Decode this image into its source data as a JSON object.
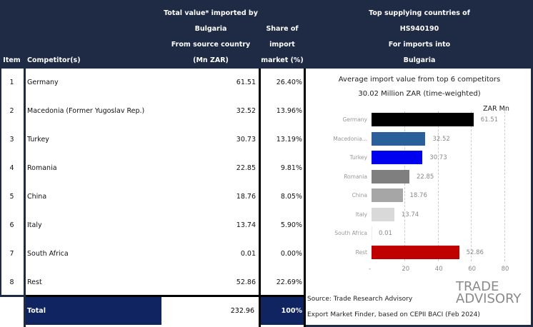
{
  "header": {
    "item": "Item",
    "competitor": "Competitor(s)",
    "value_lines": [
      "Total value* imported by",
      "Bulgaria",
      "From source country",
      "(Mn ZAR)"
    ],
    "share_lines": [
      "Share of",
      "import",
      "market (%)"
    ],
    "chart_lines": [
      "Top supplying countries of",
      "HS940190",
      "For imports into",
      "Bulgaria"
    ]
  },
  "rows": [
    {
      "item": "1",
      "name": "Germany",
      "value": "61.51",
      "share": "26.40%"
    },
    {
      "item": "2",
      "name": "Macedonia (Former Yugoslav Rep.)",
      "value": "32.52",
      "share": "13.96%"
    },
    {
      "item": "3",
      "name": "Turkey",
      "value": "30.73",
      "share": "13.19%"
    },
    {
      "item": "4",
      "name": "Romania",
      "value": "22.85",
      "share": "9.81%"
    },
    {
      "item": "5",
      "name": "China",
      "value": "18.76",
      "share": "8.05%"
    },
    {
      "item": "6",
      "name": "Italy",
      "value": "13.74",
      "share": "5.90%"
    },
    {
      "item": "7",
      "name": "South Africa",
      "value": "0.01",
      "share": "0.00%"
    },
    {
      "item": "8",
      "name": "Rest",
      "value": "52.86",
      "share": "22.69%"
    }
  ],
  "total": {
    "label": "Total",
    "value": "232.96",
    "share": "100%"
  },
  "chart_data": {
    "type": "bar",
    "orientation": "horizontal",
    "title": "Average import value from top 6 competitors",
    "subtitle": "30.02 Million ZAR (time-weighted)",
    "unit_label": "ZAR Mn",
    "categories": [
      "Germany",
      "Macedonia...",
      "Turkey",
      "Romania",
      "China",
      "Italy",
      "South Africa",
      "Rest"
    ],
    "values": [
      61.51,
      32.52,
      30.73,
      22.85,
      18.76,
      13.74,
      0.01,
      52.86
    ],
    "value_labels": [
      "61.51",
      "32.52",
      "30.73",
      "22.85",
      "18.76",
      "13.74",
      "0.01",
      "52.86"
    ],
    "colors": [
      "#000000",
      "#2a5f9a",
      "#0000f0",
      "#7f7f7f",
      "#a6a6a6",
      "#d9d9d9",
      "#eeeeee",
      "#c00000"
    ],
    "xlim": [
      0,
      80
    ],
    "ticks": [
      "-",
      "20",
      "40",
      "60",
      "80"
    ],
    "grid": true
  },
  "source": {
    "line1": "Source: Trade Research Advisory",
    "line2": "Export Market Finder, based on CEPII BACI (Feb 2024)"
  },
  "logo": {
    "line1": "TRADE",
    "line2": "ADVISORY"
  }
}
